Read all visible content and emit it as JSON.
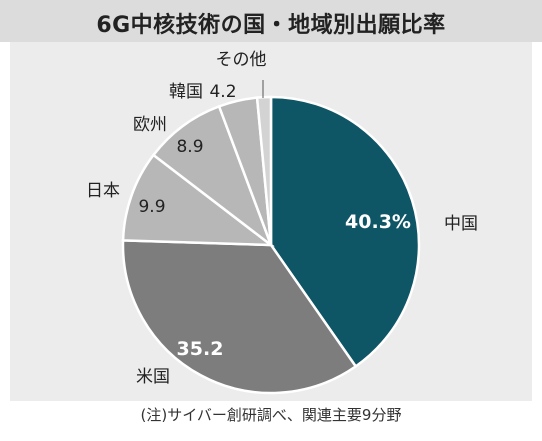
{
  "title": "6G中核技術の国・地域別出願比率",
  "footer_note": "(注)サイバー創研調べ、関連主要9分野",
  "colors": {
    "title_bar": "#dcdcdc",
    "panel": "#ececec",
    "china": "#0e5566",
    "usa": "#7d7d7d",
    "light": "#b7b7b7",
    "lighter": "#d3d3d3"
  },
  "chart_data": {
    "type": "pie",
    "title": "6G中核技術の国・地域別出願比率",
    "unit": "%",
    "slices": [
      {
        "label": "中国",
        "value": 40.3,
        "value_text": "40.3%",
        "color": "#0e5566"
      },
      {
        "label": "米国",
        "value": 35.2,
        "value_text": "35.2",
        "color": "#7d7d7d"
      },
      {
        "label": "日本",
        "value": 9.9,
        "value_text": "9.9",
        "color": "#b7b7b7"
      },
      {
        "label": "欧州",
        "value": 8.9,
        "value_text": "8.9",
        "color": "#b7b7b7"
      },
      {
        "label": "韓国",
        "value": 4.2,
        "value_text": "4.2",
        "color": "#b7b7b7"
      },
      {
        "label": "その他",
        "value": 1.5,
        "value_text": "",
        "color": "#d3d3d3"
      }
    ]
  }
}
